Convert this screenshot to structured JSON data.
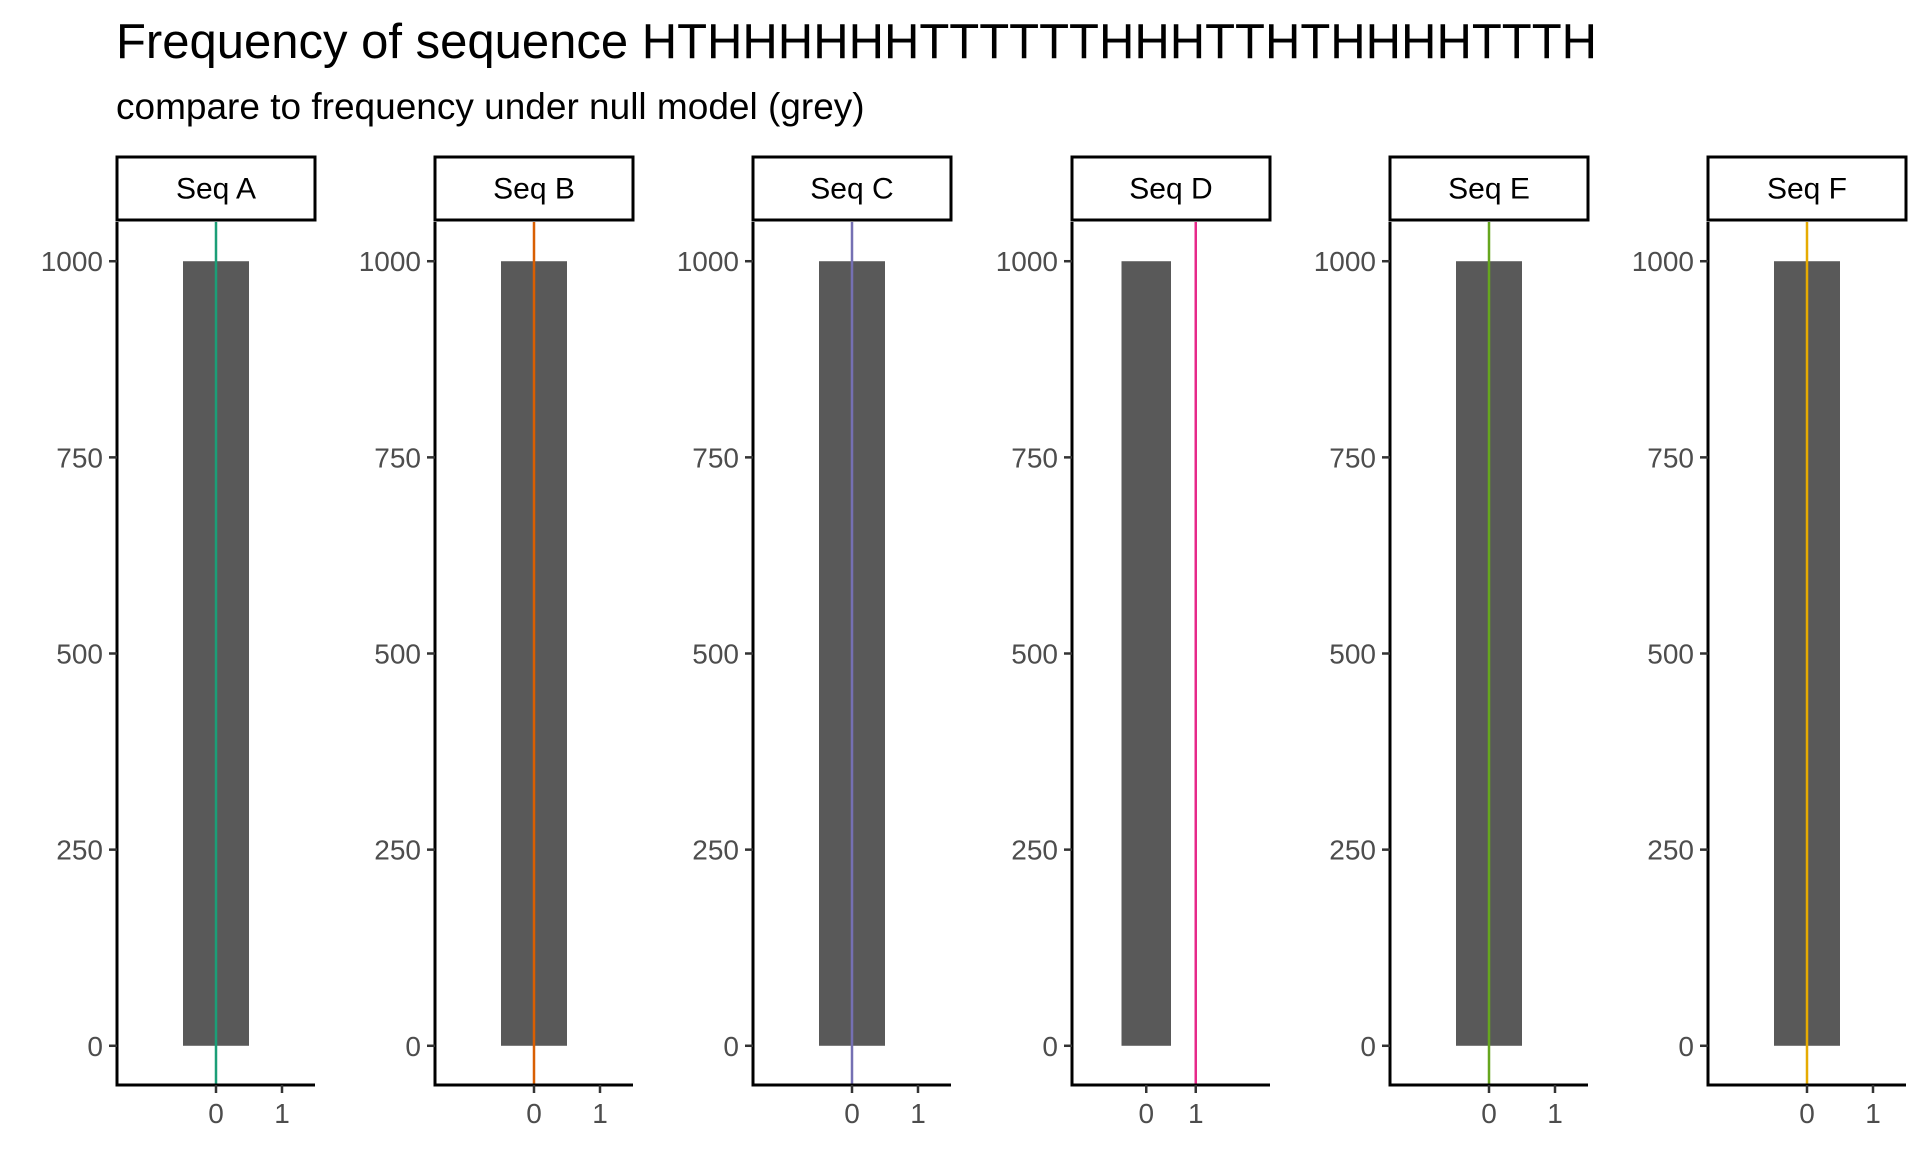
{
  "title": "Frequency of sequence HTHHHHHHTTTTTTHHHTTHTHHHHTTTH",
  "subtitle": "compare to frequency under null model (grey)",
  "chart_data": {
    "type": "bar",
    "y_ticks": [
      0,
      250,
      500,
      750,
      1000
    ],
    "x_ticks": [
      0,
      1
    ],
    "ylim": [
      -50,
      1050
    ],
    "bar_color": "#595959",
    "facets": [
      {
        "label": "Seq A",
        "xlim": [
          -1.5,
          1.5
        ],
        "bar": {
          "x": 0,
          "count": 1000
        },
        "observed": 0,
        "line_color": "#1B9E77"
      },
      {
        "label": "Seq B",
        "xlim": [
          -1.5,
          1.5
        ],
        "bar": {
          "x": 0,
          "count": 1000
        },
        "observed": 0,
        "line_color": "#D95F02"
      },
      {
        "label": "Seq C",
        "xlim": [
          -1.5,
          1.5
        ],
        "bar": {
          "x": 0,
          "count": 1000
        },
        "observed": 0,
        "line_color": "#7570B3"
      },
      {
        "label": "Seq D",
        "xlim": [
          -1.5,
          2.5
        ],
        "bar": {
          "x": 0,
          "count": 1000
        },
        "observed": 1,
        "line_color": "#E7298A"
      },
      {
        "label": "Seq E",
        "xlim": [
          -1.5,
          1.5
        ],
        "bar": {
          "x": 0,
          "count": 1000
        },
        "observed": 0,
        "line_color": "#66A61E"
      },
      {
        "label": "Seq F",
        "xlim": [
          -1.5,
          1.5
        ],
        "bar": {
          "x": 0,
          "count": 1000
        },
        "observed": 0,
        "line_color": "#E6AB02"
      }
    ]
  }
}
